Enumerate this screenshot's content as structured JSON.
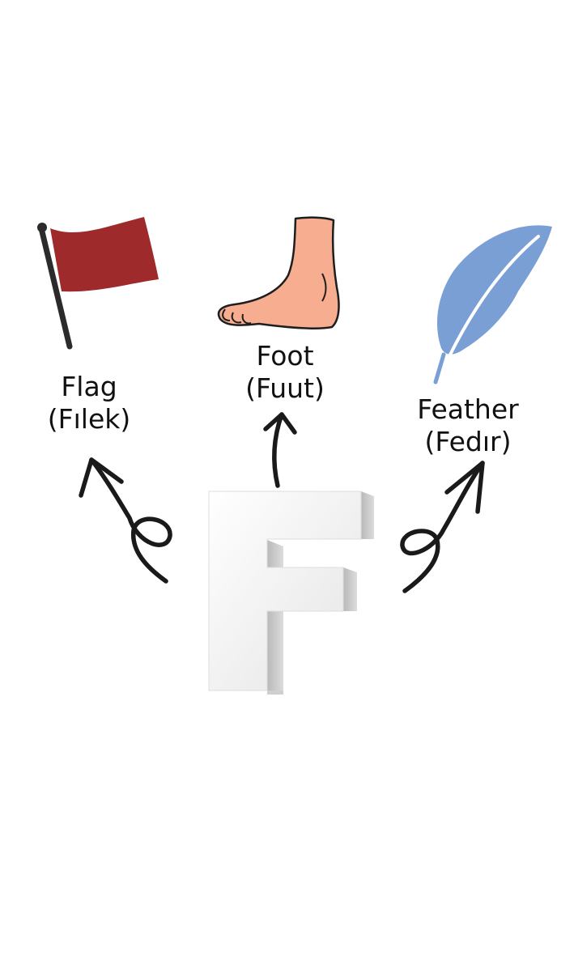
{
  "letter": "F",
  "items": [
    {
      "id": "flag",
      "word": "Flag",
      "pronunciation": "(Fılek)",
      "icon": "flag-icon",
      "color": "#9e2a2b"
    },
    {
      "id": "foot",
      "word": "Foot",
      "pronunciation": "(Fuut)",
      "icon": "foot-icon",
      "color": "#f6ad90"
    },
    {
      "id": "feather",
      "word": "Feather",
      "pronunciation": "(Fedır)",
      "icon": "feather-icon",
      "color": "#7a9fd4"
    }
  ],
  "arrow_color": "#1a1a1a"
}
